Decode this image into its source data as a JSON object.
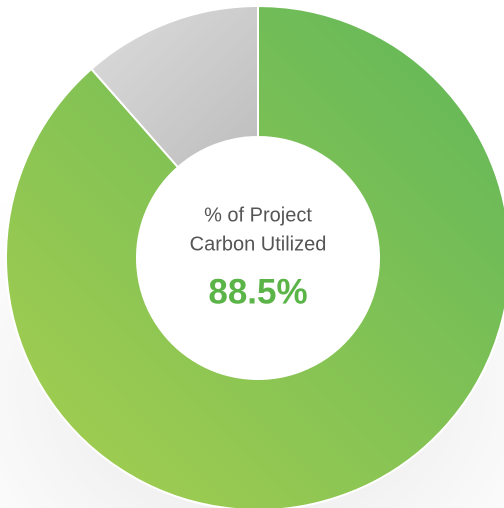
{
  "chart_data": {
    "type": "donut",
    "title_lines": [
      "% of Project",
      "Carbon Utilized"
    ],
    "values": [
      88.5,
      11.5
    ],
    "value_labels": [
      "88.5%",
      null
    ],
    "colors": [
      "#8cc453",
      "#cfcfcf"
    ],
    "label_color": "#5bb447"
  }
}
